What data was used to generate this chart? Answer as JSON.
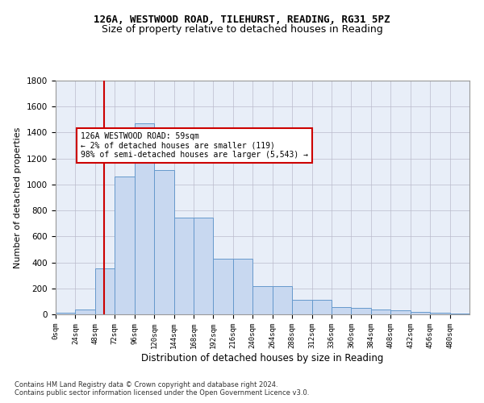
{
  "title1": "126A, WESTWOOD ROAD, TILEHURST, READING, RG31 5PZ",
  "title2": "Size of property relative to detached houses in Reading",
  "xlabel": "Distribution of detached houses by size in Reading",
  "ylabel": "Number of detached properties",
  "bar_values": [
    10,
    35,
    355,
    1060,
    1470,
    1110,
    745,
    745,
    430,
    430,
    220,
    220,
    110,
    110,
    55,
    50,
    40,
    30,
    20,
    10,
    5
  ],
  "bin_edges": [
    0,
    24,
    48,
    72,
    96,
    120,
    144,
    168,
    192,
    216,
    240,
    264,
    288,
    312,
    336,
    360,
    384,
    408,
    432,
    456,
    480
  ],
  "tick_labels": [
    "0sqm",
    "24sqm",
    "48sqm",
    "72sqm",
    "96sqm",
    "120sqm",
    "144sqm",
    "168sqm",
    "192sqm",
    "216sqm",
    "240sqm",
    "264sqm",
    "288sqm",
    "312sqm",
    "336sqm",
    "360sqm",
    "384sqm",
    "408sqm",
    "432sqm",
    "456sqm",
    "480sqm"
  ],
  "property_line_x": 59,
  "bar_color": "#c8d8f0",
  "bar_edge_color": "#6699cc",
  "line_color": "#cc0000",
  "annotation_box_text": "126A WESTWOOD ROAD: 59sqm\n← 2% of detached houses are smaller (119)\n98% of semi-detached houses are larger (5,543) →",
  "annotation_box_color": "#cc0000",
  "ylim": [
    0,
    1800
  ],
  "yticks": [
    0,
    200,
    400,
    600,
    800,
    1000,
    1200,
    1400,
    1600,
    1800
  ],
  "xlim": [
    0,
    504
  ],
  "footer_text": "Contains HM Land Registry data © Crown copyright and database right 2024.\nContains public sector information licensed under the Open Government Licence v3.0.",
  "bg_color": "#e8eef8",
  "grid_color": "#bbbbcc",
  "title1_fontsize": 9,
  "title2_fontsize": 9,
  "xlabel_fontsize": 8.5,
  "ylabel_fontsize": 8
}
